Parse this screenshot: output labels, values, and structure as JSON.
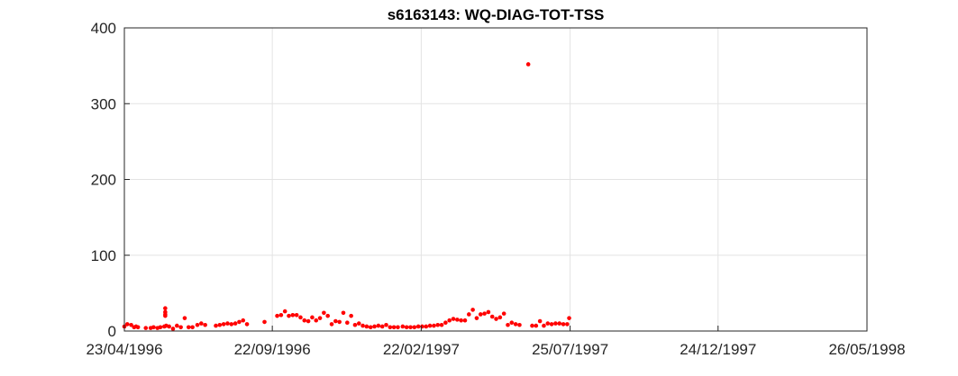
{
  "chart_data": {
    "type": "scatter",
    "title": "s6163143: WQ-DIAG-TOT-TSS",
    "xlabel": "",
    "ylabel": "",
    "x_axis_type": "date",
    "xlim": [
      "1996-04-23",
      "1998-05-26"
    ],
    "ylim": [
      0,
      400
    ],
    "x_tick_labels": [
      "23/04/1996",
      "22/09/1996",
      "22/02/1997",
      "25/07/1997",
      "24/12/1997",
      "26/05/1998"
    ],
    "y_tick_labels": [
      "0",
      "100",
      "200",
      "300",
      "400"
    ],
    "grid": true,
    "marker_color": "#ff0000",
    "series": [
      {
        "points": [
          [
            "1996-04-23",
            6
          ],
          [
            "1996-04-26",
            9
          ],
          [
            "1996-04-30",
            8
          ],
          [
            "1996-05-03",
            5
          ],
          [
            "1996-05-05",
            6
          ],
          [
            "1996-05-07",
            5
          ],
          [
            "1996-05-15",
            4
          ],
          [
            "1996-05-20",
            4
          ],
          [
            "1996-05-23",
            5
          ],
          [
            "1996-05-27",
            4
          ],
          [
            "1996-05-30",
            5
          ],
          [
            "1996-06-03",
            6
          ],
          [
            "1996-06-04",
            30
          ],
          [
            "1996-06-04",
            25
          ],
          [
            "1996-06-04",
            22
          ],
          [
            "1996-06-04",
            20
          ],
          [
            "1996-06-05",
            7
          ],
          [
            "1996-06-08",
            6
          ],
          [
            "1996-06-12",
            3
          ],
          [
            "1996-06-16",
            7
          ],
          [
            "1996-06-20",
            5
          ],
          [
            "1996-06-24",
            17
          ],
          [
            "1996-06-28",
            5
          ],
          [
            "1996-07-02",
            5
          ],
          [
            "1996-07-07",
            8
          ],
          [
            "1996-07-11",
            10
          ],
          [
            "1996-07-15",
            8
          ],
          [
            "1996-07-26",
            7
          ],
          [
            "1996-07-30",
            8
          ],
          [
            "1996-08-03",
            9
          ],
          [
            "1996-08-07",
            10
          ],
          [
            "1996-08-11",
            9
          ],
          [
            "1996-08-15",
            10
          ],
          [
            "1996-08-19",
            12
          ],
          [
            "1996-08-23",
            14
          ],
          [
            "1996-08-27",
            9
          ],
          [
            "1996-09-14",
            12
          ],
          [
            "1996-09-27",
            20
          ],
          [
            "1996-10-01",
            21
          ],
          [
            "1996-10-05",
            26
          ],
          [
            "1996-10-09",
            20
          ],
          [
            "1996-10-13",
            21
          ],
          [
            "1996-10-17",
            21
          ],
          [
            "1996-10-21",
            18
          ],
          [
            "1996-10-25",
            14
          ],
          [
            "1996-10-29",
            13
          ],
          [
            "1996-11-02",
            18
          ],
          [
            "1996-11-06",
            14
          ],
          [
            "1996-11-10",
            17
          ],
          [
            "1996-11-14",
            24
          ],
          [
            "1996-11-18",
            20
          ],
          [
            "1996-11-22",
            9
          ],
          [
            "1996-11-26",
            13
          ],
          [
            "1996-11-30",
            12
          ],
          [
            "1996-12-04",
            24
          ],
          [
            "1996-12-08",
            11
          ],
          [
            "1996-12-12",
            20
          ],
          [
            "1996-12-16",
            8
          ],
          [
            "1996-12-20",
            10
          ],
          [
            "1996-12-24",
            7
          ],
          [
            "1996-12-28",
            6
          ],
          [
            "1997-01-01",
            5
          ],
          [
            "1997-01-05",
            6
          ],
          [
            "1997-01-09",
            7
          ],
          [
            "1997-01-13",
            6
          ],
          [
            "1997-01-17",
            8
          ],
          [
            "1997-01-21",
            5
          ],
          [
            "1997-01-25",
            5
          ],
          [
            "1997-01-29",
            5
          ],
          [
            "1997-02-03",
            6
          ],
          [
            "1997-02-07",
            5
          ],
          [
            "1997-02-11",
            5
          ],
          [
            "1997-02-15",
            5
          ],
          [
            "1997-02-19",
            6
          ],
          [
            "1997-02-23",
            6
          ],
          [
            "1997-02-27",
            6
          ],
          [
            "1997-03-03",
            7
          ],
          [
            "1997-03-07",
            7
          ],
          [
            "1997-03-11",
            8
          ],
          [
            "1997-03-15",
            8
          ],
          [
            "1997-03-19",
            11
          ],
          [
            "1997-03-23",
            14
          ],
          [
            "1997-03-27",
            16
          ],
          [
            "1997-03-31",
            15
          ],
          [
            "1997-04-04",
            14
          ],
          [
            "1997-04-08",
            14
          ],
          [
            "1997-04-12",
            22
          ],
          [
            "1997-04-16",
            28
          ],
          [
            "1997-04-20",
            17
          ],
          [
            "1997-04-24",
            22
          ],
          [
            "1997-04-28",
            23
          ],
          [
            "1997-05-02",
            25
          ],
          [
            "1997-05-06",
            19
          ],
          [
            "1997-05-10",
            16
          ],
          [
            "1997-05-14",
            18
          ],
          [
            "1997-05-18",
            23
          ],
          [
            "1997-05-22",
            8
          ],
          [
            "1997-05-26",
            11
          ],
          [
            "1997-05-30",
            9
          ],
          [
            "1997-06-03",
            8
          ],
          [
            "1997-06-12",
            352
          ],
          [
            "1997-06-16",
            7
          ],
          [
            "1997-06-20",
            7
          ],
          [
            "1997-06-24",
            13
          ],
          [
            "1997-06-28",
            7
          ],
          [
            "1997-07-02",
            10
          ],
          [
            "1997-07-06",
            9
          ],
          [
            "1997-07-10",
            10
          ],
          [
            "1997-07-14",
            10
          ],
          [
            "1997-07-18",
            9
          ],
          [
            "1997-07-22",
            9
          ],
          [
            "1997-07-24",
            17
          ]
        ]
      }
    ]
  }
}
